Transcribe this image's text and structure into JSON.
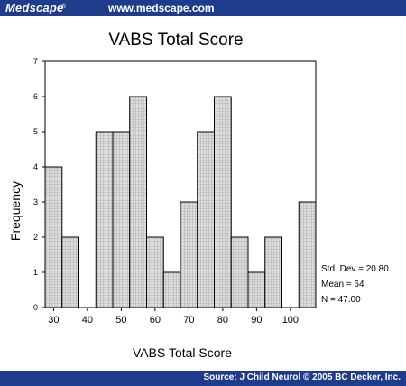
{
  "header": {
    "brand": "Medscape",
    "brand_mark": "®",
    "site_url": "www.medscape.com"
  },
  "footer": {
    "source": "Source: J Child Neurol © 2005 BC Decker, Inc."
  },
  "colors": {
    "bar_fill": "#cfcfcf",
    "bar_stroke": "#000000",
    "banner": "#1f3b8c"
  },
  "chart_data": {
    "type": "bar",
    "title": "VABS Total Score",
    "xlabel": "VABS Total Score",
    "ylabel": "Frequency",
    "bins": [
      27.5,
      32.5,
      37.5,
      42.5,
      47.5,
      52.5,
      57.5,
      62.5,
      67.5,
      72.5,
      77.5,
      82.5,
      87.5,
      92.5,
      97.5,
      102.5
    ],
    "values": [
      4,
      2,
      0,
      5,
      5,
      6,
      2,
      1,
      3,
      5,
      6,
      2,
      1,
      2,
      0,
      3
    ],
    "bin_width": 5,
    "xlim": [
      27.5,
      107.5
    ],
    "ylim": [
      0,
      7
    ],
    "x_ticks": [
      30,
      40,
      50,
      60,
      70,
      80,
      90,
      100
    ],
    "y_ticks": [
      0,
      1,
      2,
      3,
      4,
      5,
      6,
      7
    ],
    "grid": false,
    "stats": [
      "Std. Dev = 20.80",
      "Mean = 64",
      "N = 47.00"
    ]
  }
}
